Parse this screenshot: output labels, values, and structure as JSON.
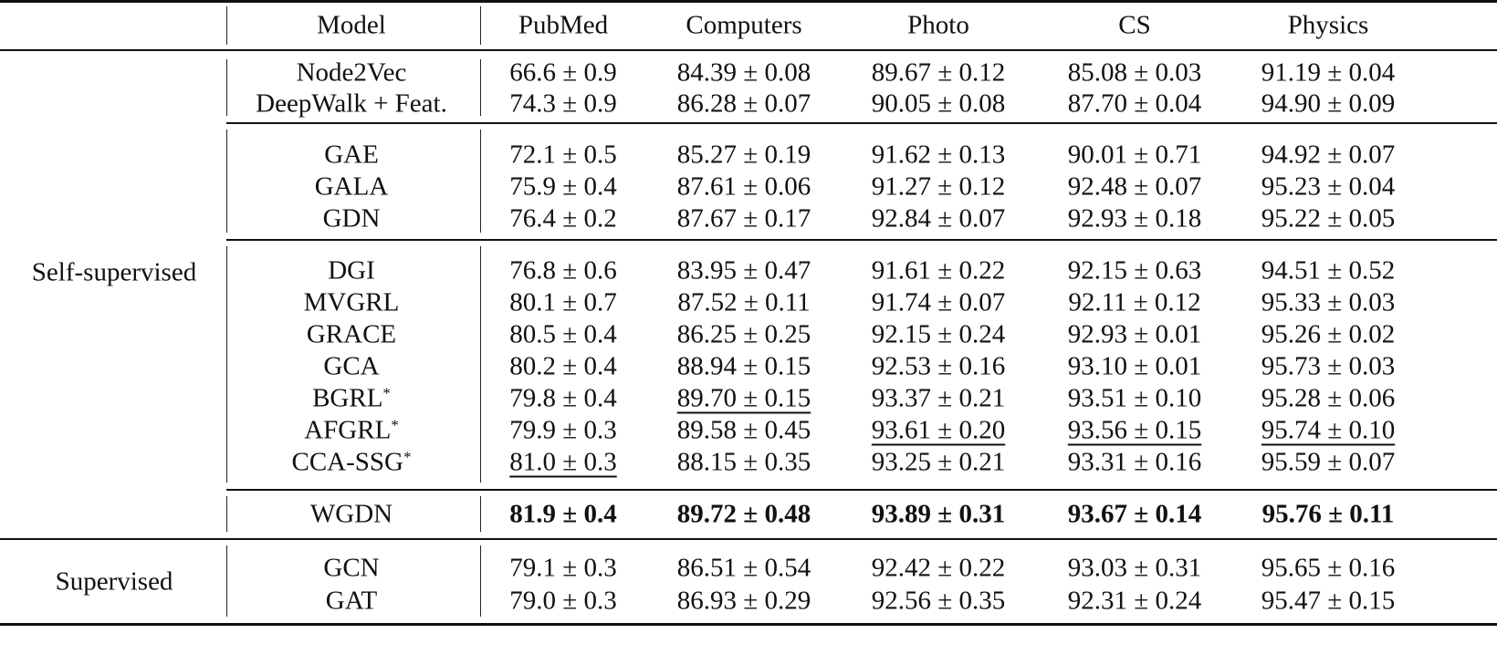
{
  "header": {
    "group": "",
    "model": "Model",
    "datasets": [
      "PubMed",
      "Computers",
      "Photo",
      "CS",
      "Physics"
    ]
  },
  "groups": [
    {
      "label": "Self-supervised"
    },
    {
      "label": "Supervised"
    }
  ],
  "sections": [
    {
      "group": 0,
      "rows": [
        {
          "model": "Node2Vec",
          "marker": "",
          "values": [
            "66.6 ± 0.9",
            "84.39 ± 0.08",
            "89.67 ± 0.12",
            "85.08 ± 0.03",
            "91.19 ± 0.04"
          ],
          "underlined": [],
          "bold": false
        },
        {
          "model": "DeepWalk + Feat.",
          "marker": "",
          "values": [
            "74.3 ± 0.9",
            "86.28 ± 0.07",
            "90.05 ± 0.08",
            "87.70 ± 0.04",
            "94.90 ± 0.09"
          ],
          "underlined": [],
          "bold": false
        }
      ]
    },
    {
      "group": 0,
      "rows": [
        {
          "model": "GAE",
          "marker": "",
          "values": [
            "72.1 ± 0.5",
            "85.27 ± 0.19",
            "91.62 ± 0.13",
            "90.01 ± 0.71",
            "94.92 ± 0.07"
          ],
          "underlined": [],
          "bold": false
        },
        {
          "model": "GALA",
          "marker": "",
          "values": [
            "75.9 ± 0.4",
            "87.61 ± 0.06",
            "91.27 ± 0.12",
            "92.48 ± 0.07",
            "95.23 ± 0.04"
          ],
          "underlined": [],
          "bold": false
        },
        {
          "model": "GDN",
          "marker": "",
          "values": [
            "76.4 ± 0.2",
            "87.67 ± 0.17",
            "92.84 ± 0.07",
            "92.93 ± 0.18",
            "95.22 ± 0.05"
          ],
          "underlined": [],
          "bold": false
        }
      ]
    },
    {
      "group": 0,
      "rows": [
        {
          "model": "DGI",
          "marker": "",
          "values": [
            "76.8 ± 0.6",
            "83.95 ± 0.47",
            "91.61 ± 0.22",
            "92.15 ± 0.63",
            "94.51 ± 0.52"
          ],
          "underlined": [],
          "bold": false
        },
        {
          "model": "MVGRL",
          "marker": "",
          "values": [
            "80.1 ± 0.7",
            "87.52 ± 0.11",
            "91.74 ± 0.07",
            "92.11 ± 0.12",
            "95.33 ± 0.03"
          ],
          "underlined": [],
          "bold": false
        },
        {
          "model": "GRACE",
          "marker": "",
          "values": [
            "80.5 ± 0.4",
            "86.25 ± 0.25",
            "92.15 ± 0.24",
            "92.93 ± 0.01",
            "95.26 ± 0.02"
          ],
          "underlined": [],
          "bold": false
        },
        {
          "model": "GCA",
          "marker": "",
          "values": [
            "80.2 ± 0.4",
            "88.94 ± 0.15",
            "92.53 ± 0.16",
            "93.10 ± 0.01",
            "95.73 ± 0.03"
          ],
          "underlined": [],
          "bold": false
        },
        {
          "model": "BGRL",
          "marker": "*",
          "values": [
            "79.8 ± 0.4",
            "89.70 ± 0.15",
            "93.37 ± 0.21",
            "93.51 ± 0.10",
            "95.28 ± 0.06"
          ],
          "underlined": [
            1
          ],
          "bold": false
        },
        {
          "model": "AFGRL",
          "marker": "*",
          "values": [
            "79.9 ± 0.3",
            "89.58 ± 0.45",
            "93.61 ± 0.20",
            "93.56 ± 0.15",
            "95.74 ± 0.10"
          ],
          "underlined": [
            2,
            3,
            4
          ],
          "bold": false
        },
        {
          "model": "CCA-SSG",
          "marker": "*",
          "values": [
            "81.0 ± 0.3",
            "88.15 ± 0.35",
            "93.25 ± 0.21",
            "93.31 ± 0.16",
            "95.59 ± 0.07"
          ],
          "underlined": [
            0
          ],
          "bold": false
        }
      ]
    },
    {
      "group": 0,
      "rows": [
        {
          "model": "WGDN",
          "marker": "",
          "values": [
            "81.9 ± 0.4",
            "89.72 ± 0.48",
            "93.89 ± 0.31",
            "93.67 ± 0.14",
            "95.76 ± 0.11"
          ],
          "underlined": [],
          "bold": true
        }
      ]
    },
    {
      "group": 1,
      "rows": [
        {
          "model": "GCN",
          "marker": "",
          "values": [
            "79.1 ± 0.3",
            "86.51 ± 0.54",
            "92.42 ± 0.22",
            "93.03 ± 0.31",
            "95.65 ± 0.16"
          ],
          "underlined": [],
          "bold": false
        },
        {
          "model": "GAT",
          "marker": "",
          "values": [
            "79.0 ± 0.3",
            "86.93 ± 0.29",
            "92.56 ± 0.35",
            "92.31 ± 0.24",
            "95.47 ± 0.15"
          ],
          "underlined": [],
          "bold": false
        }
      ]
    }
  ]
}
